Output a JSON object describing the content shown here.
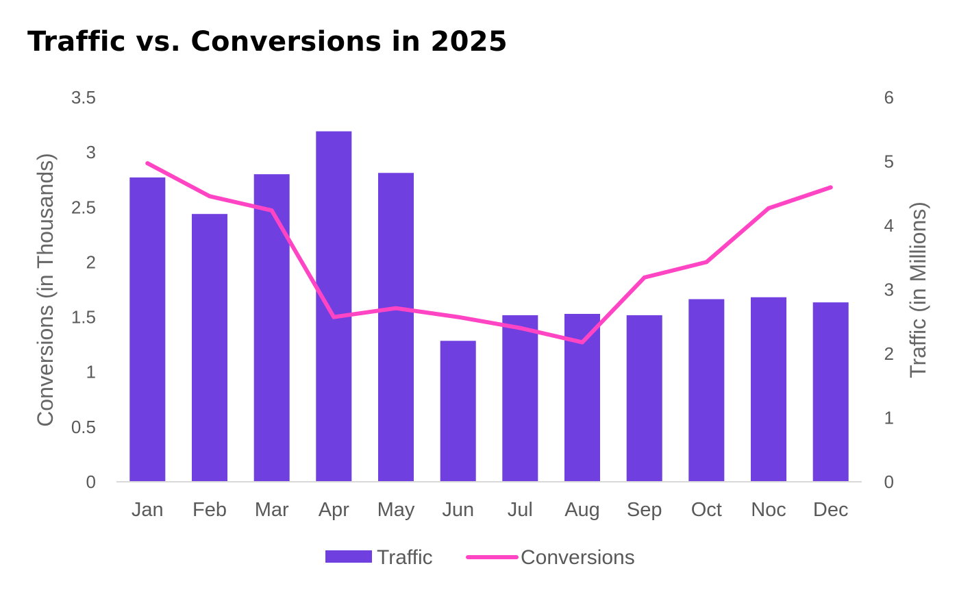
{
  "chart_data": {
    "type": "bar+line",
    "title": "Traffic vs. Conversions in 2025",
    "categories": [
      "Jan",
      "Feb",
      "Mar",
      "Apr",
      "May",
      "Jun",
      "Jul",
      "Aug",
      "Sep",
      "Oct",
      "Noc",
      "Dec"
    ],
    "series": [
      {
        "name": "Traffic",
        "type": "bar",
        "axis": "right",
        "color": "#6f3fe0",
        "values": [
          4.75,
          4.18,
          4.8,
          5.47,
          4.82,
          2.2,
          2.6,
          2.62,
          2.6,
          2.85,
          2.88,
          2.8
        ]
      },
      {
        "name": "Conversions",
        "type": "line",
        "axis": "left",
        "color": "#ff44c4",
        "values": [
          2.9,
          2.6,
          2.47,
          1.5,
          1.58,
          1.5,
          1.4,
          1.27,
          1.86,
          2.0,
          2.49,
          2.68
        ]
      }
    ],
    "y_left": {
      "label": "Conversions (in Thousands)",
      "min": 0,
      "max": 3.5,
      "ticks": [
        "0",
        "0.5",
        "1",
        "1.5",
        "2",
        "2.5",
        "3",
        "3.5"
      ]
    },
    "y_right": {
      "label": "Traffic (in Millions)",
      "min": 0,
      "max": 6,
      "ticks": [
        "0",
        "1",
        "2",
        "3",
        "4",
        "5",
        "6"
      ]
    },
    "grid": false,
    "legend": {
      "position": "bottom",
      "items": [
        {
          "label": "Traffic",
          "color": "#6f3fe0",
          "shape": "bar"
        },
        {
          "label": "Conversions",
          "color": "#ff44c4",
          "shape": "line"
        }
      ]
    }
  }
}
